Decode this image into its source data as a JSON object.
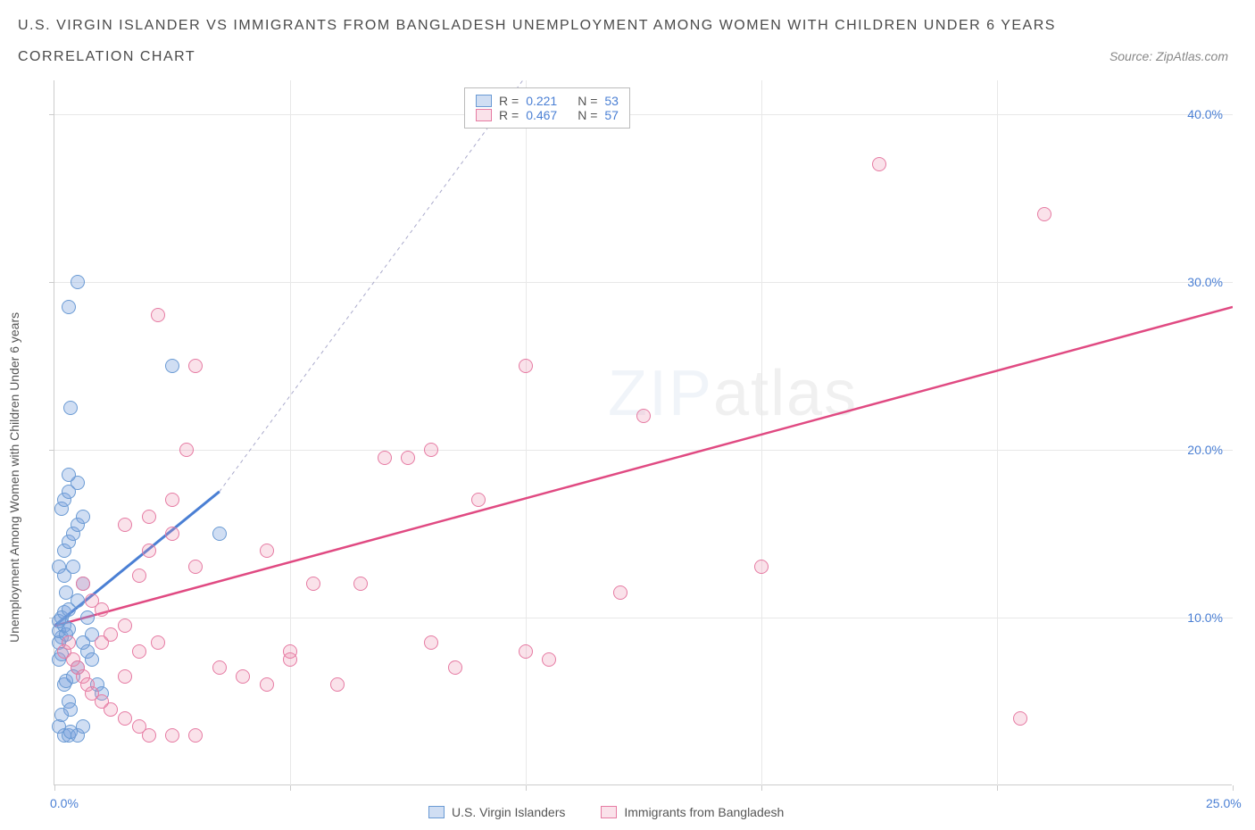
{
  "title_line1": "U.S. VIRGIN ISLANDER VS IMMIGRANTS FROM BANGLADESH UNEMPLOYMENT AMONG WOMEN WITH CHILDREN UNDER 6 YEARS",
  "title_line2": "CORRELATION CHART",
  "source_label": "Source: ZipAtlas.com",
  "y_axis_label": "Unemployment Among Women with Children Under 6 years",
  "watermark_zip": "ZIP",
  "watermark_atlas": "atlas",
  "chart": {
    "type": "scatter",
    "xlim": [
      0,
      25
    ],
    "ylim": [
      0,
      42
    ],
    "x_ticks": [
      0,
      5,
      10,
      15,
      20,
      25
    ],
    "x_tick_labels": [
      "0.0%",
      "",
      "",
      "",
      "",
      "25.0%"
    ],
    "y_ticks": [
      10,
      20,
      30,
      40
    ],
    "y_tick_labels": [
      "10.0%",
      "20.0%",
      "30.0%",
      "40.0%"
    ],
    "background_color": "#ffffff",
    "grid_color": "#e8e8e8",
    "axis_color": "#cccccc",
    "point_radius": 8,
    "series": [
      {
        "name": "U.S. Virgin Islanders",
        "color_fill": "rgba(120,160,220,0.35)",
        "color_stroke": "#6a9ad4",
        "r_value": "0.221",
        "n_value": "53",
        "trend": {
          "x1": 0,
          "y1": 9.5,
          "x2": 3.5,
          "y2": 17.5,
          "dash_x2": 10.2,
          "dash_y2": 43
        },
        "points": [
          [
            0.1,
            8.5
          ],
          [
            0.15,
            8.8
          ],
          [
            0.1,
            9.2
          ],
          [
            0.2,
            9.5
          ],
          [
            0.25,
            9.0
          ],
          [
            0.1,
            9.8
          ],
          [
            0.3,
            9.3
          ],
          [
            0.15,
            10.0
          ],
          [
            0.2,
            10.3
          ],
          [
            0.3,
            10.5
          ],
          [
            0.1,
            7.5
          ],
          [
            0.15,
            7.8
          ],
          [
            0.2,
            6.0
          ],
          [
            0.25,
            6.2
          ],
          [
            0.3,
            5.0
          ],
          [
            0.35,
            4.5
          ],
          [
            0.15,
            4.2
          ],
          [
            0.1,
            3.5
          ],
          [
            0.2,
            3.0
          ],
          [
            0.3,
            3.0
          ],
          [
            0.35,
            3.2
          ],
          [
            0.5,
            3.0
          ],
          [
            0.6,
            3.5
          ],
          [
            0.7,
            8.0
          ],
          [
            0.8,
            7.5
          ],
          [
            0.9,
            6.0
          ],
          [
            1.0,
            5.5
          ],
          [
            0.5,
            11.0
          ],
          [
            0.6,
            12.0
          ],
          [
            0.1,
            13.0
          ],
          [
            0.2,
            14.0
          ],
          [
            0.3,
            14.5
          ],
          [
            0.4,
            15.0
          ],
          [
            0.5,
            15.5
          ],
          [
            0.6,
            16.0
          ],
          [
            0.15,
            16.5
          ],
          [
            0.2,
            17.0
          ],
          [
            0.3,
            17.5
          ],
          [
            0.5,
            18.0
          ],
          [
            0.3,
            18.5
          ],
          [
            0.2,
            12.5
          ],
          [
            0.4,
            13.0
          ],
          [
            0.35,
            22.5
          ],
          [
            0.3,
            28.5
          ],
          [
            0.5,
            30.0
          ],
          [
            2.5,
            25.0
          ],
          [
            3.5,
            15.0
          ],
          [
            0.8,
            9.0
          ],
          [
            0.6,
            8.5
          ],
          [
            0.5,
            7.0
          ],
          [
            0.4,
            6.5
          ],
          [
            0.7,
            10.0
          ],
          [
            0.25,
            11.5
          ]
        ]
      },
      {
        "name": "Immigrants from Bangladesh",
        "color_fill": "rgba(235,140,170,0.25)",
        "color_stroke": "#e67ba3",
        "r_value": "0.467",
        "n_value": "57",
        "trend": {
          "x1": 0,
          "y1": 9.5,
          "x2": 25,
          "y2": 28.5
        },
        "points": [
          [
            0.2,
            8.0
          ],
          [
            0.3,
            8.5
          ],
          [
            0.4,
            7.5
          ],
          [
            0.5,
            7.0
          ],
          [
            0.6,
            6.5
          ],
          [
            0.7,
            6.0
          ],
          [
            0.8,
            5.5
          ],
          [
            1.0,
            5.0
          ],
          [
            1.2,
            4.5
          ],
          [
            1.5,
            4.0
          ],
          [
            1.8,
            3.5
          ],
          [
            2.0,
            3.0
          ],
          [
            2.5,
            3.0
          ],
          [
            3.0,
            3.0
          ],
          [
            1.5,
            15.5
          ],
          [
            2.0,
            16.0
          ],
          [
            2.5,
            17.0
          ],
          [
            3.0,
            25.0
          ],
          [
            2.8,
            20.0
          ],
          [
            1.0,
            8.5
          ],
          [
            1.2,
            9.0
          ],
          [
            1.5,
            9.5
          ],
          [
            1.8,
            12.5
          ],
          [
            2.0,
            14.0
          ],
          [
            2.5,
            15.0
          ],
          [
            3.0,
            13.0
          ],
          [
            3.5,
            7.0
          ],
          [
            4.0,
            6.5
          ],
          [
            4.5,
            6.0
          ],
          [
            5.0,
            7.5
          ],
          [
            5.5,
            12.0
          ],
          [
            4.5,
            14.0
          ],
          [
            5.0,
            8.0
          ],
          [
            6.0,
            6.0
          ],
          [
            6.5,
            12.0
          ],
          [
            7.0,
            19.5
          ],
          [
            7.5,
            19.5
          ],
          [
            8.0,
            20.0
          ],
          [
            8.0,
            8.5
          ],
          [
            8.5,
            7.0
          ],
          [
            9.0,
            17.0
          ],
          [
            10.0,
            25.0
          ],
          [
            10.0,
            8.0
          ],
          [
            10.5,
            7.5
          ],
          [
            12.0,
            11.5
          ],
          [
            12.5,
            22.0
          ],
          [
            15.0,
            13.0
          ],
          [
            17.5,
            37.0
          ],
          [
            21.0,
            34.0
          ],
          [
            20.5,
            4.0
          ],
          [
            2.2,
            28.0
          ],
          [
            1.0,
            10.5
          ],
          [
            0.8,
            11.0
          ],
          [
            0.6,
            12.0
          ],
          [
            1.5,
            6.5
          ],
          [
            1.8,
            8.0
          ],
          [
            2.2,
            8.5
          ]
        ]
      }
    ]
  },
  "legend_top": {
    "r_label": "R =",
    "n_label": "N ="
  },
  "legend_bottom": {
    "series1": "U.S. Virgin Islanders",
    "series2": "Immigrants from Bangladesh"
  }
}
